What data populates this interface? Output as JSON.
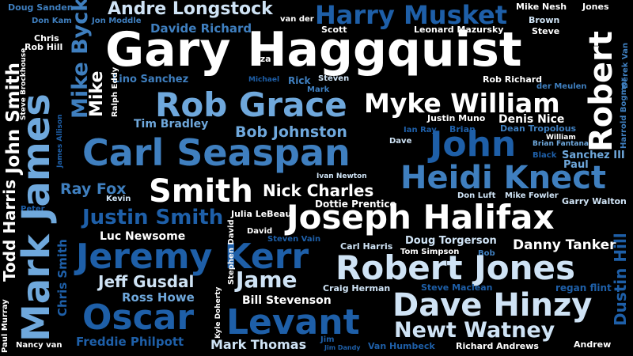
{
  "words": [
    {
      "text": "Gary Haggquist",
      "color": "#ffffff"
    },
    {
      "text": "Harry Musket",
      "color": "#1e5fa8"
    },
    {
      "text": "Andre Longstock",
      "color": "#cfe3f5"
    },
    {
      "text": "Davide Richard",
      "color": "#3f7fbf"
    },
    {
      "text": "Doug Sanden",
      "color": "#3f7fbf"
    },
    {
      "text": "Don Kam",
      "color": "#3f7fbf"
    },
    {
      "text": "Jon Moddle",
      "color": "#3f7fbf"
    },
    {
      "text": "van der",
      "color": "#ffffff"
    },
    {
      "text": "Scott",
      "color": "#ffffff"
    },
    {
      "text": "Leonard Mazursky",
      "color": "#ffffff"
    },
    {
      "text": "Mike Nesh",
      "color": "#ffffff"
    },
    {
      "text": "Jones",
      "color": "#ffffff"
    },
    {
      "text": "Brown",
      "color": "#cfe3f5"
    },
    {
      "text": "Steve",
      "color": "#ffffff"
    },
    {
      "text": "Chris",
      "color": "#ffffff"
    },
    {
      "text": "Rob Hill",
      "color": "#ffffff"
    },
    {
      "text": "Liza",
      "color": "#ffffff"
    },
    {
      "text": "Lino Sanchez",
      "color": "#3f7fbf"
    },
    {
      "text": "Michael",
      "color": "#1e5fa8"
    },
    {
      "text": "Rick",
      "color": "#3f7fbf"
    },
    {
      "text": "Steven",
      "color": "#cfe3f5"
    },
    {
      "text": "Mark",
      "color": "#3f7fbf"
    },
    {
      "text": "Rob Richard",
      "color": "#ffffff"
    },
    {
      "text": "der Meulen",
      "color": "#3f7fbf"
    },
    {
      "text": "Rob Grace",
      "color": "#6fa8dc"
    },
    {
      "text": "Myke William",
      "color": "#ffffff"
    },
    {
      "text": "Tim Bradley",
      "color": "#6fa8dc"
    },
    {
      "text": "Justin Muno",
      "color": "#ffffff"
    },
    {
      "text": "Denis Nice",
      "color": "#ffffff"
    },
    {
      "text": "Bob Johnston",
      "color": "#6fa8dc"
    },
    {
      "text": "Ian Ray",
      "color": "#1e5fa8"
    },
    {
      "text": "Brian",
      "color": "#1e5fa8"
    },
    {
      "text": "Dean Tropolous",
      "color": "#3f7fbf"
    },
    {
      "text": "William",
      "color": "#ffffff"
    },
    {
      "text": "Brian Fantana",
      "color": "#6fa8dc"
    },
    {
      "text": "Dave",
      "color": "#cfe3f5"
    },
    {
      "text": "John",
      "color": "#1e5fa8"
    },
    {
      "text": "Carl Seaspan",
      "color": "#3f7fbf"
    },
    {
      "text": "Black",
      "color": "#1e5fa8"
    },
    {
      "text": "Sanchez III",
      "color": "#6fa8dc"
    },
    {
      "text": "Paul",
      "color": "#6fa8dc"
    },
    {
      "text": "Heidi Knect",
      "color": "#3f7fbf"
    },
    {
      "text": "Ivan Newton",
      "color": "#cfe3f5"
    },
    {
      "text": "Smith",
      "color": "#ffffff"
    },
    {
      "text": "Nick Charles",
      "color": "#ffffff"
    },
    {
      "text": "Dottie Prentice",
      "color": "#ffffff"
    },
    {
      "text": "Ray Fox",
      "color": "#3f7fbf"
    },
    {
      "text": "Kevin",
      "color": "#cfe3f5"
    },
    {
      "text": "Don Luft",
      "color": "#cfe3f5"
    },
    {
      "text": "Mike Fowler",
      "color": "#cfe3f5"
    },
    {
      "text": "Garry Walton",
      "color": "#cfe3f5"
    },
    {
      "text": "Peter",
      "color": "#1e5fa8"
    },
    {
      "text": "Justin Smith",
      "color": "#1e5fa8"
    },
    {
      "text": "Julia LeBeau",
      "color": "#ffffff"
    },
    {
      "text": "Joseph Halifax",
      "color": "#ffffff"
    },
    {
      "text": "David",
      "color": "#ffffff"
    },
    {
      "text": "Luc Newsome",
      "color": "#ffffff"
    },
    {
      "text": "Steven Vain",
      "color": "#1e5fa8"
    },
    {
      "text": "Doug Torgerson",
      "color": "#cfe3f5"
    },
    {
      "text": "Carl Harris",
      "color": "#cfe3f5"
    },
    {
      "text": "Danny Tanker",
      "color": "#ffffff"
    },
    {
      "text": "Tom Simpson",
      "color": "#ffffff"
    },
    {
      "text": "Bob",
      "color": "#3f7fbf"
    },
    {
      "text": "Jeremy Kerr",
      "color": "#1e5fa8"
    },
    {
      "text": "Robert Jones",
      "color": "#cfe3f5"
    },
    {
      "text": "Jeff Gusdal",
      "color": "#cfe3f5"
    },
    {
      "text": "Jame",
      "color": "#cfe3f5"
    },
    {
      "text": "Steve Maclean",
      "color": "#1e5fa8"
    },
    {
      "text": "regan flint",
      "color": "#1e5fa8"
    },
    {
      "text": "Ross Howe",
      "color": "#6fa8dc"
    },
    {
      "text": "Craig Herman",
      "color": "#cfe3f5"
    },
    {
      "text": "Bill Stevenson",
      "color": "#ffffff"
    },
    {
      "text": "Dave Hinzy",
      "color": "#cfe3f5"
    },
    {
      "text": "Oscar",
      "color": "#1e5fa8"
    },
    {
      "text": "Levant",
      "color": "#1e5fa8"
    },
    {
      "text": "Newt Watney",
      "color": "#cfe3f5"
    },
    {
      "text": "Freddie Philpott",
      "color": "#1e5fa8"
    },
    {
      "text": "Nancy van",
      "color": "#ffffff"
    },
    {
      "text": "Mark Thomas",
      "color": "#cfe3f5"
    },
    {
      "text": "Jim",
      "color": "#1e5fa8"
    },
    {
      "text": "Jim Dandy",
      "color": "#1e5fa8"
    },
    {
      "text": "Van Humbeck",
      "color": "#1e5fa8"
    },
    {
      "text": "Richard Andrews",
      "color": "#ffffff"
    },
    {
      "text": "Andrew",
      "color": "#ffffff"
    },
    {
      "text": "John Smith",
      "color": "#ffffff"
    },
    {
      "text": "Mark James",
      "color": "#6fa8dc"
    },
    {
      "text": "Mike Byck",
      "color": "#3f7fbf"
    },
    {
      "text": "Mike",
      "color": "#ffffff"
    },
    {
      "text": "Steve Brockhouse",
      "color": "#ffffff"
    },
    {
      "text": "James Allison",
      "color": "#1e5fa8"
    },
    {
      "text": "Ralph Eddy",
      "color": "#ffffff"
    },
    {
      "text": "Todd Harris",
      "color": "#ffffff"
    },
    {
      "text": "Chris Smith",
      "color": "#1e5fa8"
    },
    {
      "text": "Paul Murray",
      "color": "#ffffff"
    },
    {
      "text": "Stephen David",
      "color": "#ffffff"
    },
    {
      "text": "Kyle Doherty",
      "color": "#ffffff"
    },
    {
      "text": "Robert",
      "color": "#ffffff"
    },
    {
      "text": "Harrold Bogmer",
      "color": "#3f7fbf"
    },
    {
      "text": "Derek Van",
      "color": "#3f7fbf"
    },
    {
      "text": "Dustin Hill",
      "color": "#1e5fa8"
    }
  ]
}
